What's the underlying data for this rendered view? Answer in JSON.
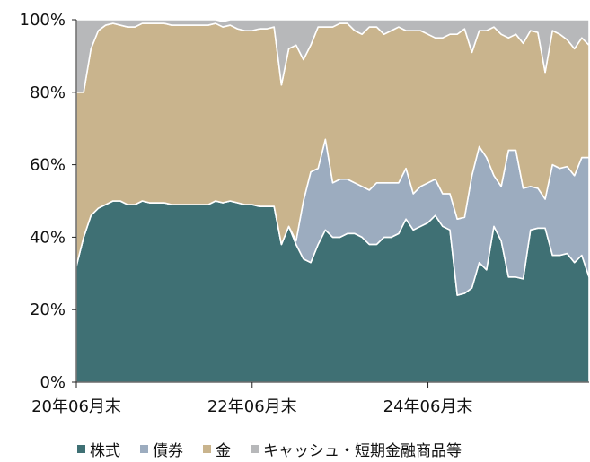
{
  "chart_data": {
    "type": "area",
    "stacked": true,
    "normalized": true,
    "ylim": [
      0,
      100
    ],
    "yticks": [
      "0%",
      "20%",
      "40%",
      "60%",
      "80%",
      "100%"
    ],
    "xticks": [
      {
        "label": "20年06月末",
        "index": 0
      },
      {
        "label": "22年06月末",
        "index": 24
      },
      {
        "label": "24年06月末",
        "index": 48
      }
    ],
    "grid": false,
    "legend_position": "bottom",
    "series": [
      {
        "name": "株式",
        "color": "#3f7074",
        "values": [
          32,
          40,
          46,
          48,
          49,
          50,
          50,
          49,
          49,
          50,
          49.5,
          49.5,
          49.5,
          49,
          49,
          49,
          49,
          49,
          49,
          50,
          49.5,
          50,
          49.5,
          49,
          49,
          48.5,
          48.5,
          48.5,
          38,
          43,
          38,
          34,
          33,
          38,
          42,
          40,
          40,
          41,
          41,
          40,
          38,
          38,
          40,
          40,
          41,
          45,
          42,
          43,
          44,
          46,
          43,
          42,
          24,
          24.5,
          26,
          33,
          31,
          43,
          39,
          29,
          29,
          28.5,
          42,
          42.5,
          42.5,
          35,
          35,
          35.5,
          33,
          35,
          29
        ]
      },
      {
        "name": "債券",
        "color": "#9cacbf",
        "values": [
          0,
          0,
          0,
          0,
          0,
          0,
          0,
          0,
          0,
          0,
          0,
          0,
          0,
          0,
          0,
          0,
          0,
          0,
          0,
          0,
          0,
          0,
          0,
          0,
          0,
          0,
          0,
          0,
          0,
          0,
          1,
          16,
          25,
          21,
          25,
          15,
          16,
          15,
          14,
          14,
          15,
          17,
          15,
          15,
          14,
          14,
          10,
          11,
          11,
          10,
          9,
          10,
          21,
          21,
          31,
          32,
          31,
          14,
          15,
          35,
          35,
          25,
          12,
          11,
          8,
          25,
          24,
          24,
          24,
          27,
          33
        ]
      },
      {
        "name": "金",
        "color": "#c9b48d",
        "values": [
          48,
          40,
          46,
          49,
          49.5,
          49,
          48.5,
          49,
          49,
          49,
          49.5,
          49.5,
          49.5,
          49.5,
          49.5,
          49.5,
          49.5,
          49.5,
          49.5,
          49,
          48.5,
          48.5,
          48,
          48,
          48,
          49,
          49,
          49.5,
          44,
          49,
          54,
          39,
          35,
          39,
          31,
          43,
          43,
          43,
          42,
          42,
          45,
          43,
          41,
          42,
          43,
          38,
          45,
          43,
          41,
          39,
          43,
          44,
          51,
          52,
          34,
          32,
          35,
          41,
          42,
          31,
          32,
          40,
          43,
          43,
          35,
          37,
          37,
          35,
          35,
          33,
          31
        ]
      },
      {
        "name": "キャッシュ・短期金融商品等",
        "color": "#b7b8ba",
        "values": [
          20,
          20,
          8,
          3,
          1.5,
          1,
          1.5,
          2,
          2,
          1,
          1,
          1,
          1,
          1.5,
          1.5,
          1.5,
          1.5,
          1.5,
          1.5,
          1,
          1.5,
          1.5,
          2.5,
          3,
          3,
          2.5,
          2.5,
          2,
          18,
          8,
          7,
          11,
          7,
          2,
          2,
          2,
          1,
          1,
          3,
          4,
          2,
          2,
          4,
          3,
          2,
          3,
          3,
          3,
          4,
          5,
          5,
          4,
          4,
          2.5,
          9,
          3,
          3,
          2,
          4,
          5,
          4,
          6.5,
          3,
          3.5,
          14.5,
          3,
          4,
          5.5,
          8,
          5,
          7
        ]
      }
    ]
  }
}
